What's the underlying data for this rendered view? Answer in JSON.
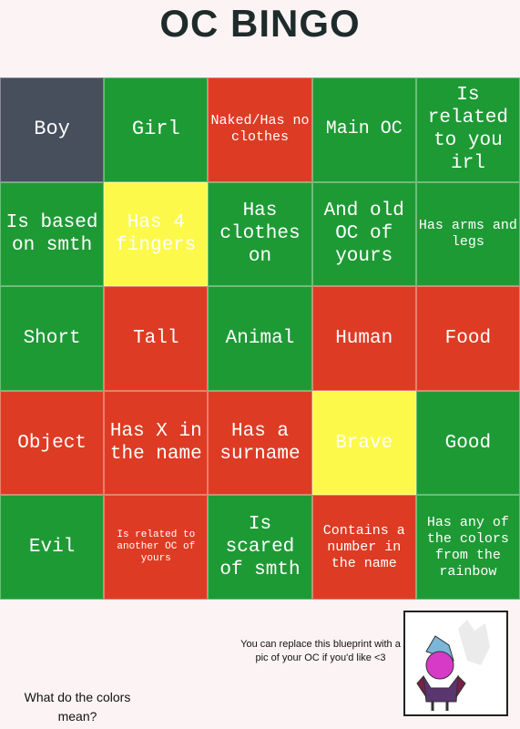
{
  "title": "OC BINGO",
  "grid": {
    "rows": [
      [
        {
          "text": "Boy",
          "color": "#474e5c"
        },
        {
          "text": "Girl",
          "color": "#1e9a35"
        },
        {
          "text": "Naked/Has no clothes",
          "color": "#de3b24"
        },
        {
          "text": "Main OC",
          "color": "#1e9a35"
        },
        {
          "text": "Is related to you irl",
          "color": "#1e9a35"
        }
      ],
      [
        {
          "text": "Is based on smth",
          "color": "#1e9a35"
        },
        {
          "text": "Has 4 fingers",
          "color": "#fdf94a"
        },
        {
          "text": "Has clothes on",
          "color": "#1e9a35"
        },
        {
          "text": "And old OC of yours",
          "color": "#1e9a35"
        },
        {
          "text": "Has arms and legs",
          "color": "#1e9a35"
        }
      ],
      [
        {
          "text": "Short",
          "color": "#1e9a35"
        },
        {
          "text": "Tall",
          "color": "#de3b24"
        },
        {
          "text": "Animal",
          "color": "#1e9a35"
        },
        {
          "text": "Human",
          "color": "#de3b24"
        },
        {
          "text": "Food",
          "color": "#de3b24"
        }
      ],
      [
        {
          "text": "Object",
          "color": "#de3b24"
        },
        {
          "text": "Has X in the name",
          "color": "#de3b24"
        },
        {
          "text": "Has a surname",
          "color": "#de3b24"
        },
        {
          "text": "Brave",
          "color": "#fdf94a"
        },
        {
          "text": "Good",
          "color": "#1e9a35"
        }
      ],
      [
        {
          "text": "Evil",
          "color": "#1e9a35"
        },
        {
          "text": "Is related to another OC of yours",
          "color": "#de3b24"
        },
        {
          "text": "Is scared of smth",
          "color": "#1e9a35"
        },
        {
          "text": "Contains a number in the name",
          "color": "#de3b24"
        },
        {
          "text": "Has any of the colors from the rainbow",
          "color": "#1e9a35"
        }
      ]
    ]
  },
  "note": "You can replace this blueprint with a pic of your OC if you'd like <3",
  "legend_prompt": "What do the colors mean?"
}
